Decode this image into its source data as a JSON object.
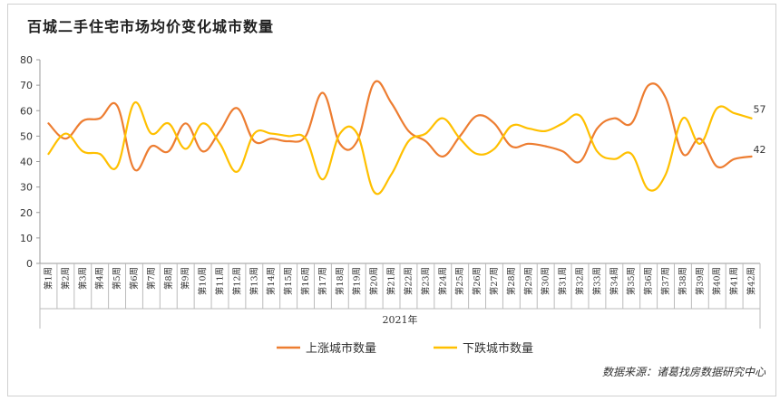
{
  "title": "百城二手住宅市场均价变化城市数量",
  "source": "数据来源：诸葛找房数据研究中心",
  "chart_data": {
    "type": "line",
    "title": "百城二手住宅市场均价变化城市数量",
    "xlabel": "2021年",
    "ylabel": "",
    "ylim": [
      0,
      80
    ],
    "yticks": [
      0,
      10,
      20,
      30,
      40,
      50,
      60,
      70,
      80
    ],
    "grid": false,
    "legend": "bottom",
    "categories": [
      "第1周",
      "第2周",
      "第3周",
      "第4周",
      "第5周",
      "第6周",
      "第7周",
      "第8周",
      "第9周",
      "第10周",
      "第11周",
      "第12周",
      "第13周",
      "第14周",
      "第15周",
      "第16周",
      "第17周",
      "第18周",
      "第19周",
      "第20周",
      "第21周",
      "第22周",
      "第23周",
      "第24周",
      "第25周",
      "第26周",
      "第27周",
      "第28周",
      "第29周",
      "第30周",
      "第31周",
      "第32周",
      "第33周",
      "第34周",
      "第35周",
      "第36周",
      "第37周",
      "第38周",
      "第39周",
      "第40周",
      "第41周",
      "第42周"
    ],
    "series": [
      {
        "name": "上涨城市数量",
        "color": "#ED7D31",
        "values": [
          55,
          49,
          56,
          57,
          62,
          37,
          46,
          44,
          55,
          44,
          52,
          61,
          48,
          49,
          48,
          50,
          67,
          47,
          48,
          71,
          63,
          52,
          48,
          42,
          50,
          58,
          55,
          46,
          47,
          46,
          44,
          40,
          53,
          57,
          55,
          70,
          65,
          43,
          49,
          38,
          41,
          42
        ],
        "end_label": "42"
      },
      {
        "name": "下跌城市数量",
        "color": "#FFC000",
        "values": [
          43,
          51,
          44,
          43,
          38,
          63,
          51,
          55,
          45,
          55,
          47,
          36,
          51,
          51,
          50,
          49,
          33,
          51,
          51,
          28,
          35,
          48,
          51,
          57,
          49,
          43,
          45,
          54,
          53,
          52,
          55,
          58,
          44,
          41,
          43,
          29,
          35,
          57,
          47,
          61,
          59,
          57
        ],
        "end_label": "57"
      }
    ]
  }
}
